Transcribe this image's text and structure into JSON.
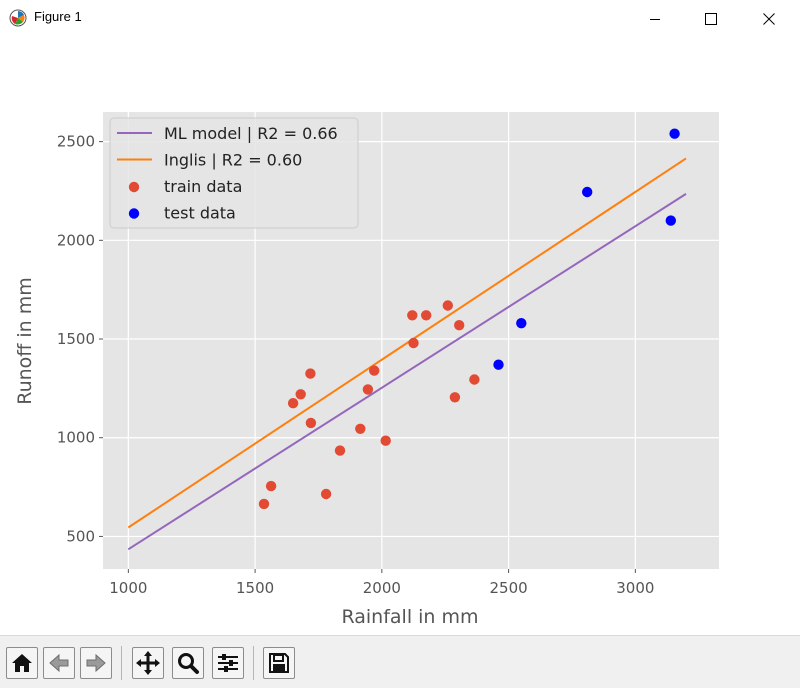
{
  "window": {
    "title": "Figure 1",
    "app_icon": "matplotlib-icon",
    "controls": [
      "minimize-icon",
      "maximize-icon",
      "close-icon"
    ]
  },
  "toolbar": {
    "buttons": [
      "home-icon",
      "back-arrow-icon",
      "forward-arrow-icon",
      "pan-icon",
      "zoom-icon",
      "configure-subplots-icon",
      "save-icon"
    ]
  },
  "chart_data": {
    "type": "scatter",
    "title": "",
    "xlabel": "Rainfall in mm",
    "ylabel": "Runoff in mm",
    "xlim": [
      900,
      3330
    ],
    "ylim": [
      335,
      2650
    ],
    "xticks": [
      1000,
      1500,
      2000,
      2500,
      3000
    ],
    "yticks": [
      500,
      1000,
      1500,
      2000,
      2500
    ],
    "xtick_labels": [
      "1000",
      "1500",
      "2000",
      "2500",
      "3000"
    ],
    "ytick_labels": [
      "500",
      "1000",
      "1500",
      "2000",
      "2500"
    ],
    "grid": true,
    "legend_position": "upper-left",
    "background_color": "#e5e5e5",
    "series": [
      {
        "name": "ML model | R2 = 0.66",
        "kind": "line",
        "color": "#9467bd",
        "x": [
          1000,
          3200
        ],
        "y": [
          435,
          2235
        ]
      },
      {
        "name": "Inglis | R2 = 0.60",
        "kind": "line",
        "color": "#ff7f0e",
        "x": [
          1000,
          3200
        ],
        "y": [
          545,
          2415
        ]
      },
      {
        "name": "train data",
        "kind": "scatter",
        "color": "#e24a33",
        "x": [
          1535,
          1563,
          1650,
          1680,
          1718,
          1720,
          1780,
          1835,
          1915,
          1945,
          1970,
          2015,
          2120,
          2125,
          2175,
          2260,
          2288,
          2305,
          2365
        ],
        "y": [
          665,
          755,
          1175,
          1220,
          1325,
          1075,
          715,
          935,
          1045,
          1245,
          1340,
          985,
          1620,
          1480,
          1620,
          1670,
          1205,
          1570,
          1295
        ]
      },
      {
        "name": "test data",
        "kind": "scatter",
        "color": "#0000ff",
        "x": [
          2460,
          2550,
          2810,
          3140,
          3155
        ],
        "y": [
          1370,
          1580,
          2245,
          2100,
          2540
        ]
      }
    ]
  }
}
